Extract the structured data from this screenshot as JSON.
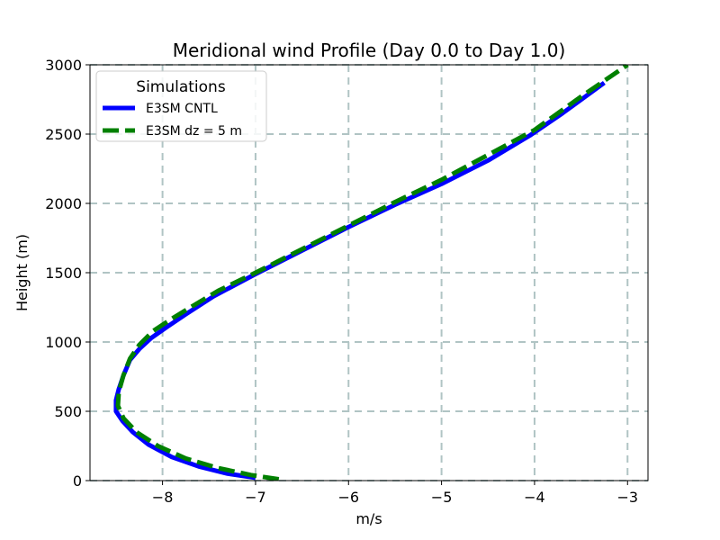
{
  "chart_data": {
    "type": "line",
    "title": "Meridional wind Profile (Day 0.0 to Day 1.0)",
    "xlabel": "m/s",
    "ylabel": "Height (m)",
    "xlim": [
      -8.78,
      -2.78
    ],
    "ylim": [
      0,
      3000
    ],
    "grid": true,
    "xticks": [
      -8,
      -7,
      -6,
      -5,
      -4,
      -3
    ],
    "xtick_labels": [
      "−8",
      "−7",
      "−6",
      "−5",
      "−4",
      "−3"
    ],
    "yticks": [
      0,
      500,
      1000,
      1500,
      2000,
      2500,
      3000
    ],
    "ytick_labels": [
      "0",
      "500",
      "1000",
      "1500",
      "2000",
      "2500",
      "3000"
    ],
    "legend": {
      "title": "Simulations",
      "location": "upper-left"
    },
    "series": [
      {
        "name": "E3SM CNTL",
        "color": "#0000ff",
        "style": "solid",
        "x": [
          -7.0,
          -7.3,
          -7.6,
          -7.9,
          -8.15,
          -8.32,
          -8.43,
          -8.5,
          -8.5,
          -8.47,
          -8.42,
          -8.35,
          -8.25,
          -8.12,
          -7.95,
          -7.75,
          -7.45,
          -7.0,
          -6.5,
          -6.0,
          -5.5,
          -5.0,
          -4.5,
          -4.05,
          -3.7,
          -3.25
        ],
        "y": [
          20,
          50,
          100,
          170,
          260,
          350,
          430,
          500,
          580,
          660,
          760,
          870,
          950,
          1030,
          1110,
          1200,
          1330,
          1490,
          1660,
          1830,
          1990,
          2140,
          2310,
          2490,
          2650,
          2870
        ]
      },
      {
        "name": "E3SM dz = 5 m",
        "color": "#008000",
        "style": "dashed",
        "x": [
          -6.75,
          -7.05,
          -7.4,
          -7.75,
          -8.05,
          -8.28,
          -8.42,
          -8.48,
          -8.47,
          -8.42,
          -8.35,
          -8.25,
          -8.1,
          -7.92,
          -7.7,
          -7.4,
          -7.0,
          -6.5,
          -6.0,
          -5.5,
          -5.0,
          -4.5,
          -4.0,
          -3.5,
          -3.0
        ],
        "y": [
          10,
          40,
          90,
          160,
          250,
          350,
          450,
          540,
          640,
          760,
          880,
          980,
          1080,
          1160,
          1250,
          1370,
          1500,
          1670,
          1840,
          2010,
          2170,
          2350,
          2530,
          2770,
          3000
        ]
      }
    ]
  }
}
